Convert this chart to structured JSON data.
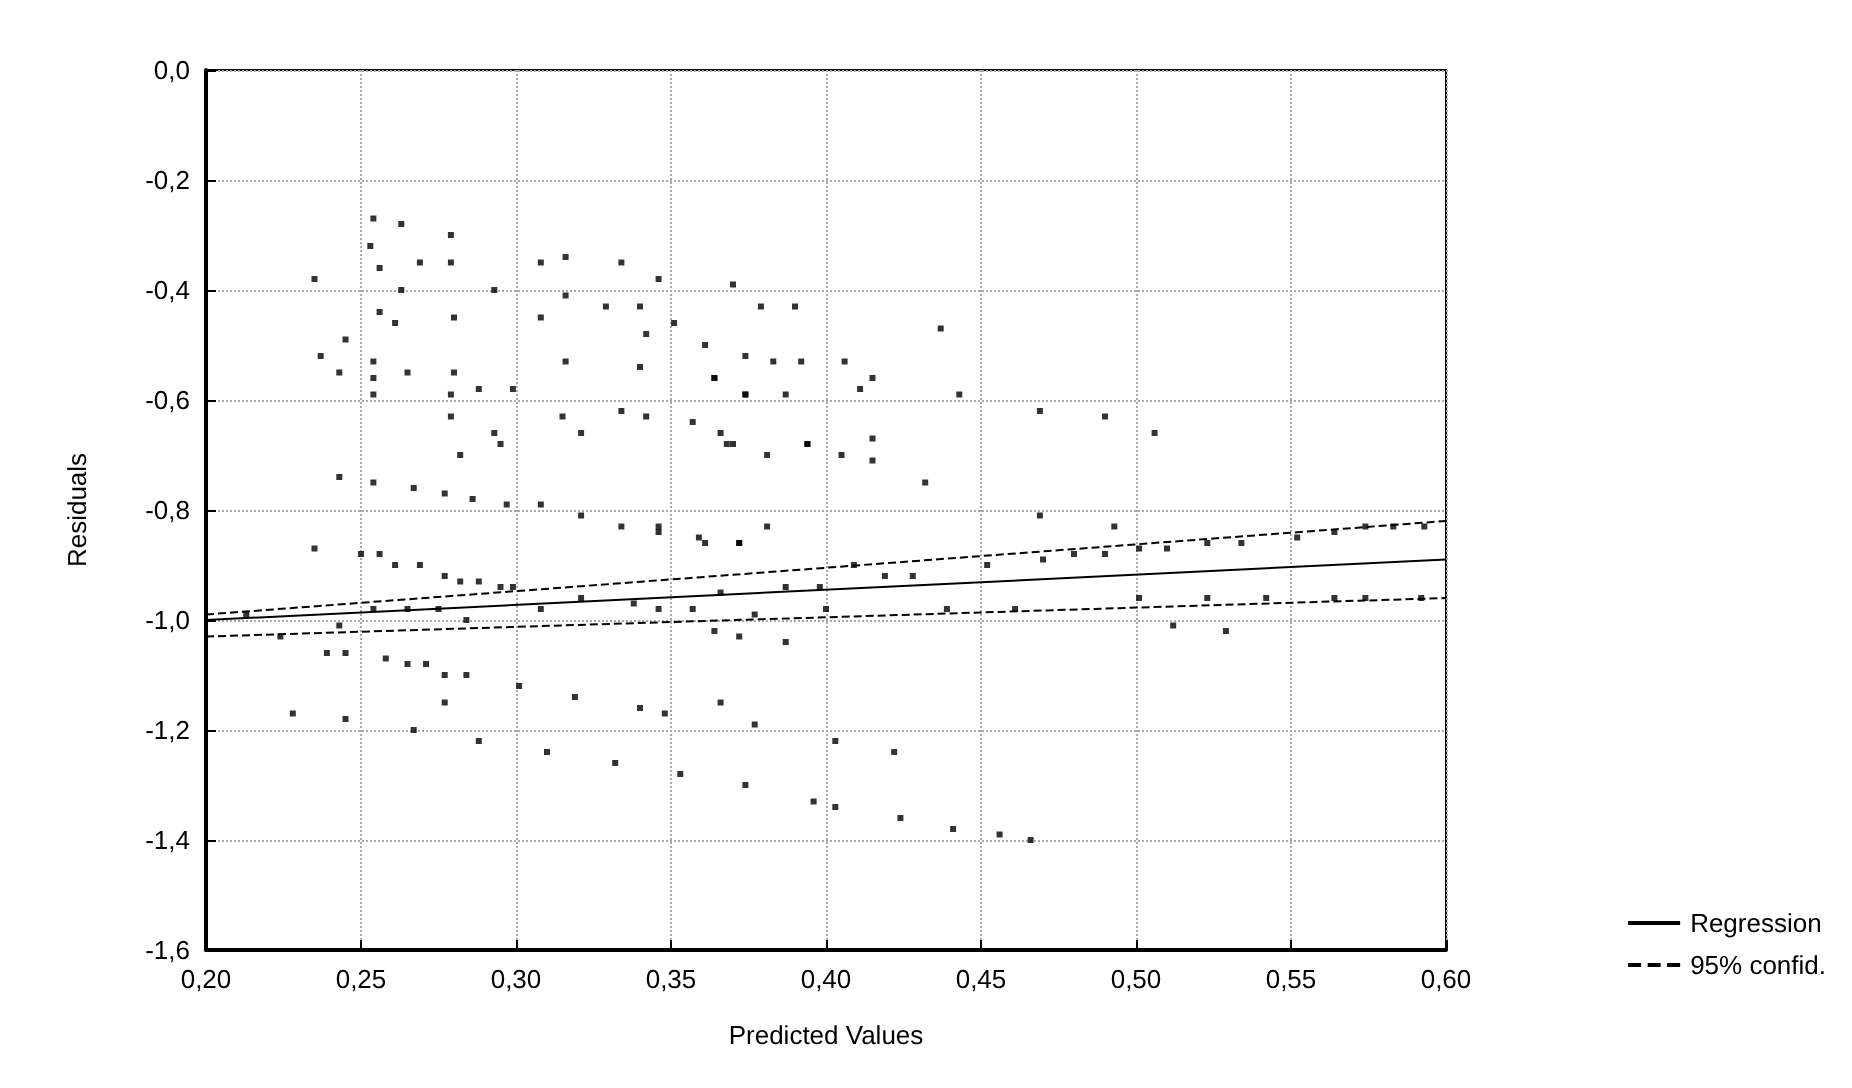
{
  "chart_data": {
    "type": "scatter",
    "xlabel": "Predicted Values",
    "ylabel": "Residuals",
    "xlim": [
      0.2,
      0.6
    ],
    "ylim": [
      -1.6,
      0.0
    ],
    "xticks": [
      {
        "value": 0.2,
        "label": "0,20"
      },
      {
        "value": 0.25,
        "label": "0,25"
      },
      {
        "value": 0.3,
        "label": "0,30"
      },
      {
        "value": 0.35,
        "label": "0,35"
      },
      {
        "value": 0.4,
        "label": "0,40"
      },
      {
        "value": 0.45,
        "label": "0,45"
      },
      {
        "value": 0.5,
        "label": "0,50"
      },
      {
        "value": 0.55,
        "label": "0,55"
      },
      {
        "value": 0.6,
        "label": "0,60"
      }
    ],
    "yticks": [
      {
        "value": 0.0,
        "label": "0,0"
      },
      {
        "value": -0.2,
        "label": "-0,2"
      },
      {
        "value": -0.4,
        "label": "-0,4"
      },
      {
        "value": -0.6,
        "label": "-0,6"
      },
      {
        "value": -0.8,
        "label": "-0,8"
      },
      {
        "value": -1.0,
        "label": "-1,0"
      },
      {
        "value": -1.2,
        "label": "-1,2"
      },
      {
        "value": -1.4,
        "label": "-1,4"
      },
      {
        "value": -1.6,
        "label": "-1,6"
      }
    ],
    "grid": true,
    "legend": "bottom right",
    "marker": "square",
    "series": [
      {
        "color": "#000000",
        "x": [
          0.235,
          0.263,
          0.293,
          0.308,
          0.342,
          0.374,
          0.392,
          0.361,
          0.383,
          0.415,
          0.443,
          0.469,
          0.49,
          0.506,
          0.254,
          0.263,
          0.279,
          0.253,
          0.269,
          0.279,
          0.256,
          0.308,
          0.316,
          0.334,
          0.346,
          0.34,
          0.37,
          0.379,
          0.39,
          0.256,
          0.261,
          0.28,
          0.316,
          0.329,
          0.351,
          0.237,
          0.254,
          0.254,
          0.265,
          0.28,
          0.288,
          0.299,
          0.254,
          0.279,
          0.279,
          0.316,
          0.34,
          0.364,
          0.374,
          0.387,
          0.245,
          0.243,
          0.364,
          0.374,
          0.406,
          0.411,
          0.437,
          0.315,
          0.334,
          0.342,
          0.357,
          0.366,
          0.321,
          0.293,
          0.295,
          0.37,
          0.381,
          0.394,
          0.368,
          0.394,
          0.405,
          0.415,
          0.415,
          0.432,
          0.243,
          0.254,
          0.267,
          0.277,
          0.286,
          0.297,
          0.308,
          0.321,
          0.334,
          0.346,
          0.359,
          0.372,
          0.346,
          0.361,
          0.372,
          0.381,
          0.282,
          0.469,
          0.493,
          0.235,
          0.25,
          0.256,
          0.261,
          0.269,
          0.277,
          0.282,
          0.288,
          0.295,
          0.299,
          0.213,
          0.224,
          0.243,
          0.254,
          0.265,
          0.275,
          0.284,
          0.308,
          0.321,
          0.338,
          0.346,
          0.357,
          0.364,
          0.372,
          0.377,
          0.387,
          0.387,
          0.366,
          0.398,
          0.4,
          0.409,
          0.419,
          0.428,
          0.439,
          0.452,
          0.461,
          0.47,
          0.48,
          0.49,
          0.501,
          0.501,
          0.51,
          0.523,
          0.534,
          0.523,
          0.542,
          0.552,
          0.564,
          0.574,
          0.583,
          0.593,
          0.564,
          0.574,
          0.592,
          0.512,
          0.529,
          0.239,
          0.245,
          0.258,
          0.265,
          0.271,
          0.277,
          0.284,
          0.301,
          0.319,
          0.34,
          0.348,
          0.366,
          0.277,
          0.377,
          0.403,
          0.422,
          0.228,
          0.245,
          0.267,
          0.288,
          0.31,
          0.332,
          0.353,
          0.374,
          0.396,
          0.403,
          0.424,
          0.441,
          0.456,
          0.466
        ],
        "values": [
          -0.38,
          -0.4,
          -0.4,
          -0.45,
          -0.48,
          -0.52,
          -0.53,
          -0.5,
          -0.53,
          -0.56,
          -0.59,
          -0.62,
          -0.63,
          -0.66,
          -0.27,
          -0.28,
          -0.3,
          -0.32,
          -0.35,
          -0.35,
          -0.36,
          -0.35,
          -0.34,
          -0.35,
          -0.38,
          -0.43,
          -0.39,
          -0.43,
          -0.43,
          -0.44,
          -0.46,
          -0.45,
          -0.41,
          -0.43,
          -0.46,
          -0.52,
          -0.53,
          -0.56,
          -0.55,
          -0.55,
          -0.58,
          -0.58,
          -0.59,
          -0.59,
          -0.63,
          -0.53,
          -0.54,
          -0.56,
          -0.59,
          -0.59,
          -0.49,
          -0.55,
          -0.56,
          -0.59,
          -0.53,
          -0.58,
          -0.47,
          -0.63,
          -0.62,
          -0.63,
          -0.64,
          -0.66,
          -0.66,
          -0.66,
          -0.68,
          -0.68,
          -0.7,
          -0.68,
          -0.68,
          -0.68,
          -0.7,
          -0.71,
          -0.67,
          -0.75,
          -0.74,
          -0.75,
          -0.76,
          -0.77,
          -0.78,
          -0.79,
          -0.79,
          -0.81,
          -0.83,
          -0.84,
          -0.85,
          -0.86,
          -0.83,
          -0.86,
          -0.86,
          -0.83,
          -0.7,
          -0.81,
          -0.83,
          -0.87,
          -0.88,
          -0.88,
          -0.9,
          -0.9,
          -0.92,
          -0.93,
          -0.93,
          -0.94,
          -0.94,
          -0.99,
          -1.03,
          -1.01,
          -0.98,
          -0.98,
          -0.98,
          -1.0,
          -0.98,
          -0.96,
          -0.97,
          -0.98,
          -0.98,
          -1.02,
          -1.03,
          -0.99,
          -0.94,
          -1.04,
          -0.95,
          -0.94,
          -0.98,
          -0.9,
          -0.92,
          -0.92,
          -0.98,
          -0.9,
          -0.98,
          -0.89,
          -0.88,
          -0.88,
          -0.87,
          -0.96,
          -0.87,
          -0.86,
          -0.86,
          -0.96,
          -0.96,
          -0.85,
          -0.84,
          -0.83,
          -0.83,
          -0.83,
          -0.96,
          -0.96,
          -0.96,
          -1.01,
          -1.02,
          -1.06,
          -1.06,
          -1.07,
          -1.08,
          -1.08,
          -1.1,
          -1.1,
          -1.12,
          -1.14,
          -1.16,
          -1.17,
          -1.15,
          -1.15,
          -1.19,
          -1.22,
          -1.24,
          -1.17,
          -1.18,
          -1.2,
          -1.22,
          -1.24,
          -1.26,
          -1.28,
          -1.3,
          -1.33,
          -1.34,
          -1.36,
          -1.38,
          -1.39,
          -1.4
        ]
      },
      {
        "type": "line",
        "name": "Regression",
        "color": "#000000",
        "line_style": "solid",
        "marker": "none",
        "x": [
          0.2,
          0.6
        ],
        "values": [
          -1.0,
          -0.89
        ]
      },
      {
        "type": "line",
        "name": "95% confid.",
        "color": "#000000",
        "line_style": "dashed",
        "marker": "none",
        "x": [
          0.2,
          0.6
        ],
        "values": [
          -0.99,
          -0.82
        ]
      },
      {
        "type": "line",
        "color": "#000000",
        "line_style": "dashed",
        "marker": "none",
        "x": [
          0.2,
          0.6
        ],
        "values": [
          -1.03,
          -0.96
        ]
      }
    ]
  }
}
